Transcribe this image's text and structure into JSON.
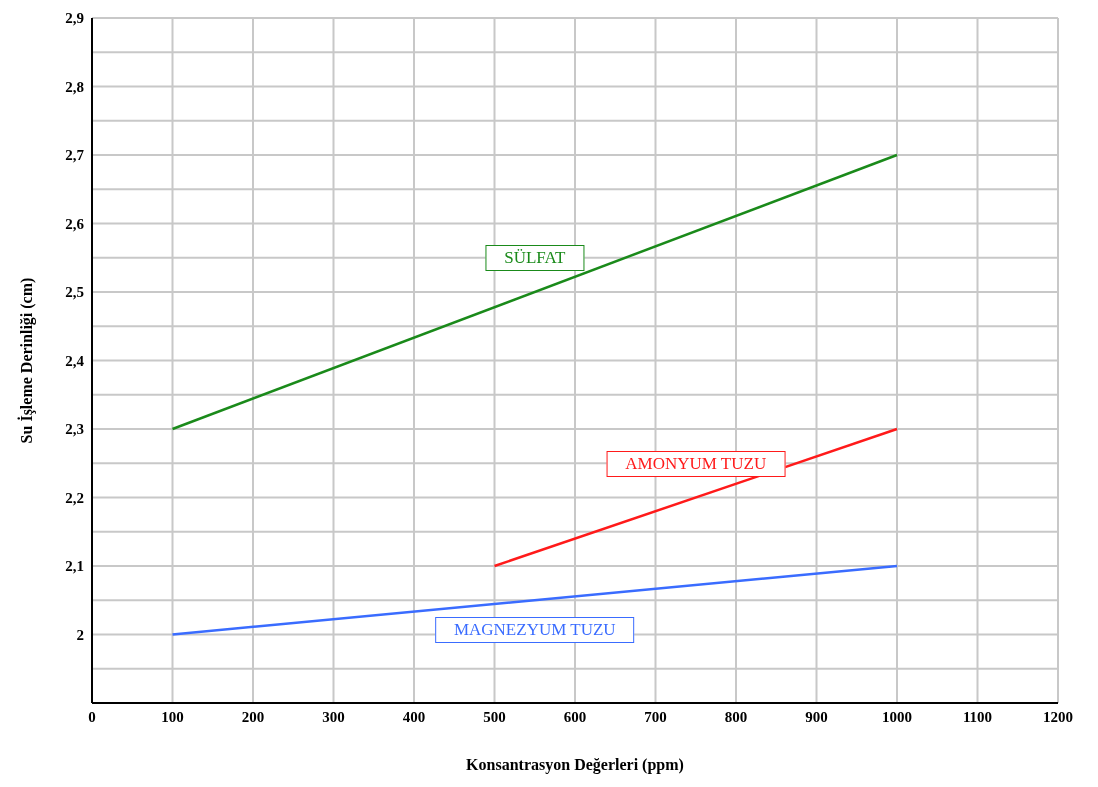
{
  "chart_data": {
    "type": "line",
    "xlabel": "Konsantrasyon Değerleri (ppm)",
    "ylabel": "Su İşleme Derinliği (cm)",
    "series": [
      {
        "name": "SÜLFAT",
        "color": "#1a8a1a",
        "x": [
          100,
          1000
        ],
        "values": [
          2.3,
          2.7
        ]
      },
      {
        "name": "AMONYUM TUZU",
        "color": "#ff1a1a",
        "x": [
          500,
          1000
        ],
        "values": [
          2.1,
          2.3
        ]
      },
      {
        "name": "MAGNEZYUM TUZU",
        "color": "#3a6cff",
        "x": [
          100,
          1000
        ],
        "values": [
          2.0,
          2.1
        ]
      }
    ],
    "xlim": [
      0,
      1200
    ],
    "xticks": [
      0,
      100,
      200,
      300,
      400,
      500,
      600,
      700,
      800,
      900,
      1000,
      1100,
      1200
    ],
    "ylim": [
      1.9,
      2.9
    ],
    "yticks": [
      {
        "value": 1.9,
        "label": null
      },
      {
        "value": 1.95,
        "label": null
      },
      2,
      {
        "value": 2.05,
        "label": null
      },
      {
        "value": 2.1,
        "label": "2,1"
      },
      {
        "value": 2.15,
        "label": null
      },
      {
        "value": 2.2,
        "label": "2,2"
      },
      {
        "value": 2.25,
        "label": null
      },
      {
        "value": 2.3,
        "label": "2,3"
      },
      {
        "value": 2.35,
        "label": null
      },
      {
        "value": 2.4,
        "label": "2,4"
      },
      {
        "value": 2.45,
        "label": null
      },
      {
        "value": 2.5,
        "label": "2,5"
      },
      {
        "value": 2.55,
        "label": null
      },
      {
        "value": 2.6,
        "label": "2,6"
      },
      {
        "value": 2.65,
        "label": null
      },
      {
        "value": 2.7,
        "label": "2,7"
      },
      {
        "value": 2.75,
        "label": null
      },
      {
        "value": 2.8,
        "label": "2,8"
      },
      {
        "value": 2.85,
        "label": null
      },
      {
        "value": 2.9,
        "label": "2,9"
      }
    ],
    "grid": true,
    "marker": "none",
    "line_style": "solid",
    "legend": false
  }
}
